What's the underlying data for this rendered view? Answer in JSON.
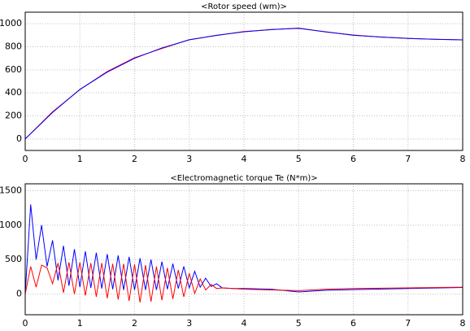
{
  "chart_data": [
    {
      "type": "line",
      "title": "<Rotor speed (wm)>",
      "x": [
        0,
        0.5,
        1,
        1.5,
        2,
        2.5,
        3,
        3.5,
        4,
        4.5,
        5,
        5.5,
        6,
        6.5,
        7,
        7.5,
        8
      ],
      "series": [
        {
          "color": "#ff0000",
          "values": [
            0,
            235,
            428,
            585,
            705,
            785,
            862,
            898,
            932,
            948,
            962,
            928,
            902,
            884,
            873,
            864,
            860
          ]
        },
        {
          "color": "#0000ff",
          "values": [
            0,
            230,
            430,
            580,
            700,
            790,
            860,
            900,
            930,
            950,
            960,
            930,
            900,
            885,
            872,
            865,
            860
          ]
        }
      ],
      "xlim": [
        0,
        8
      ],
      "xticks": [
        0,
        1,
        2,
        3,
        4,
        5,
        6,
        7,
        8
      ],
      "ylim": [
        -100,
        1100
      ],
      "yticks": [
        0,
        200,
        400,
        600,
        800,
        1000
      ],
      "grid": true
    },
    {
      "type": "line",
      "title": "<Electromagnetic  torque Te (N*m)>",
      "x": [
        0,
        0.1,
        0.2,
        0.3,
        0.4,
        0.5,
        0.6,
        0.7,
        0.8,
        0.9,
        1,
        1.1,
        1.2,
        1.3,
        1.4,
        1.5,
        1.6,
        1.7,
        1.8,
        1.9,
        2,
        2.1,
        2.2,
        2.3,
        2.4,
        2.5,
        2.6,
        2.7,
        2.8,
        2.9,
        3,
        3.1,
        3.2,
        3.3,
        3.4,
        3.5,
        3.6,
        3.8,
        4,
        4.5,
        5,
        5.5,
        6,
        7,
        8
      ],
      "series": [
        {
          "color": "#0000ff",
          "values": [
            0,
            1300,
            500,
            1000,
            400,
            780,
            200,
            700,
            120,
            650,
            100,
            620,
            90,
            600,
            80,
            580,
            70,
            560,
            60,
            540,
            60,
            520,
            60,
            500,
            60,
            470,
            70,
            440,
            80,
            400,
            90,
            330,
            100,
            230,
            110,
            150,
            90,
            80,
            80,
            70,
            30,
            55,
            65,
            80,
            95
          ]
        },
        {
          "color": "#ff0000",
          "values": [
            0,
            400,
            100,
            420,
            380,
            150,
            450,
            20,
            460,
            0,
            460,
            -20,
            450,
            -40,
            450,
            -60,
            440,
            -80,
            440,
            -100,
            430,
            -120,
            420,
            -110,
            400,
            -90,
            380,
            -70,
            350,
            -40,
            300,
            10,
            220,
            60,
            140,
            80,
            90,
            80,
            70,
            60,
            50,
            70,
            80,
            90,
            100
          ]
        }
      ],
      "xlim": [
        0,
        8
      ],
      "xticks": [
        0,
        1,
        2,
        3,
        4,
        5,
        6,
        7,
        8
      ],
      "ylim": [
        -300,
        1600
      ],
      "yticks": [
        0,
        500,
        1000,
        1500
      ],
      "grid": true
    }
  ]
}
